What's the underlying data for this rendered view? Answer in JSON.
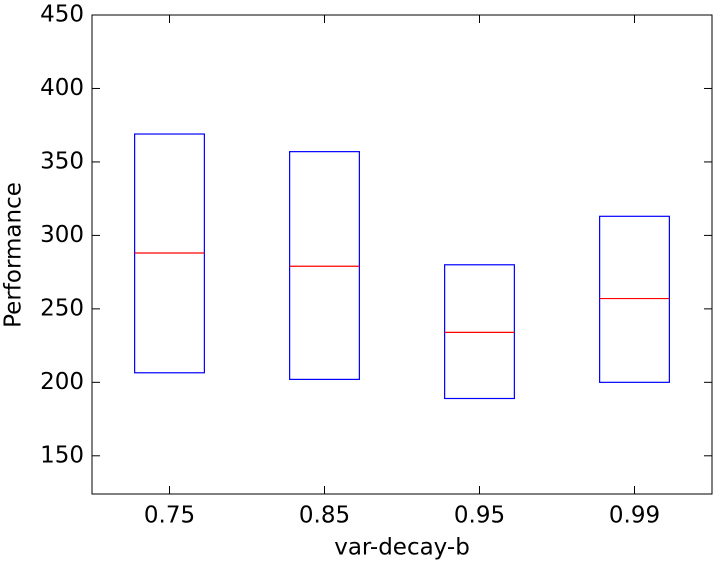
{
  "chart_data": {
    "type": "box",
    "x_label": "var-decay-b",
    "y_label": "Performance",
    "categories": [
      "0.75",
      "0.85",
      "0.95",
      "0.99"
    ],
    "series": [
      {
        "name": "q1",
        "values": [
          206.5,
          202,
          189,
          200
        ]
      },
      {
        "name": "median",
        "values": [
          288,
          279,
          234,
          257
        ]
      },
      {
        "name": "q3",
        "values": [
          369,
          357,
          280,
          313
        ]
      }
    ],
    "box_color": "#0000ff",
    "median_color": "#ff0000",
    "ylim": [
      124,
      450
    ],
    "yticks": [
      150,
      200,
      250,
      300,
      350,
      400,
      450
    ]
  }
}
